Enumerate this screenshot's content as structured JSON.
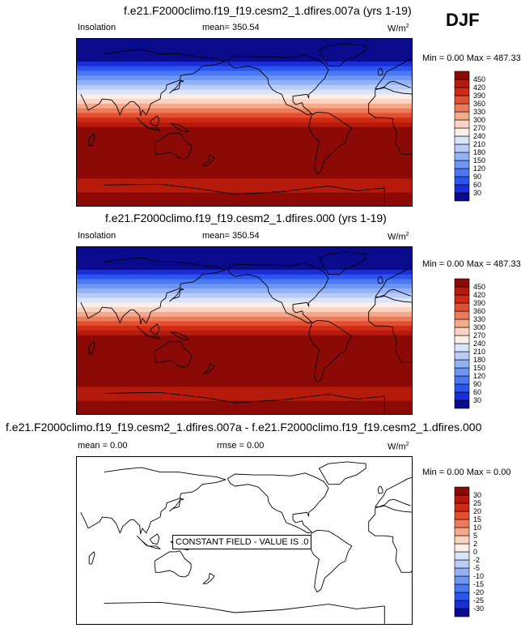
{
  "season": "DJF",
  "panels": [
    {
      "title": "f.e21.F2000climo.f19_f19.cesm2_1.dfires.007a (yrs 1-19)",
      "left_label": "Insolation",
      "mean_label": "mean= 350.54",
      "units_main": "W/m",
      "units_sup": "2",
      "minmax_label": "Min =  0.00 Max = 487.33"
    },
    {
      "title": "f.e21.F2000climo.f19_f19.cesm2_1.dfires.000 (yrs 1-19)",
      "left_label": "Insolation",
      "mean_label": "mean= 350.54",
      "units_main": "W/m",
      "units_sup": "2",
      "minmax_label": "Min =  0.00 Max = 487.33"
    },
    {
      "title": "f.e21.F2000climo.f19_f19.cesm2_1.dfires.007a - f.e21.F2000climo.f19_f19.cesm2_1.dfires.000",
      "mean_label": "mean =   0.00",
      "rmse_label": "rmse =   0.00",
      "units_main": "W/m",
      "units_sup": "2",
      "minmax_label": "Min =  0.00 Max =   0.00",
      "annotation": "CONSTANT FIELD - VALUE IS .0"
    }
  ],
  "chart_data": [
    {
      "type": "heatmap",
      "title": "f.e21.F2000climo.f19_f19.cesm2_1.dfires.007a (yrs 1-19)",
      "variable": "Insolation",
      "units": "W/m2",
      "mean": 350.54,
      "min": 0.0,
      "max": 487.33,
      "colorbar_levels": [
        30,
        60,
        90,
        120,
        150,
        180,
        210,
        240,
        270,
        300,
        330,
        360,
        390,
        420,
        450
      ],
      "colorbar_colors": [
        "#0a0a8c",
        "#1a2dd6",
        "#2a55ee",
        "#4a78f2",
        "#6d95f2",
        "#93b2f5",
        "#b8ccf7",
        "#d9e4fa",
        "#fbeee6",
        "#fad3c2",
        "#f4a98a",
        "#ec7b5b",
        "#e2502f",
        "#d02a14",
        "#b51a0a",
        "#8c0a05"
      ],
      "latitude_bands": [
        {
          "lat": [
            65,
            90
          ],
          "value": 0
        },
        {
          "lat": [
            60,
            65
          ],
          "value": 30
        },
        {
          "lat": [
            55,
            60
          ],
          "value": 75
        },
        {
          "lat": [
            50,
            55
          ],
          "value": 105
        },
        {
          "lat": [
            45,
            50
          ],
          "value": 135
        },
        {
          "lat": [
            40,
            45
          ],
          "value": 165
        },
        {
          "lat": [
            35,
            40
          ],
          "value": 195
        },
        {
          "lat": [
            30,
            35
          ],
          "value": 225
        },
        {
          "lat": [
            25,
            30
          ],
          "value": 255
        },
        {
          "lat": [
            20,
            25
          ],
          "value": 285
        },
        {
          "lat": [
            15,
            20
          ],
          "value": 315
        },
        {
          "lat": [
            10,
            15
          ],
          "value": 345
        },
        {
          "lat": [
            5,
            10
          ],
          "value": 375
        },
        {
          "lat": [
            0,
            5
          ],
          "value": 405
        },
        {
          "lat": [
            -5,
            0
          ],
          "value": 435
        },
        {
          "lat": [
            -60,
            -5
          ],
          "value": 465
        },
        {
          "lat": [
            -75,
            -60
          ],
          "value": 440
        },
        {
          "lat": [
            -90,
            -75
          ],
          "value": 470
        }
      ]
    },
    {
      "type": "heatmap",
      "title": "f.e21.F2000climo.f19_f19.cesm2_1.dfires.000 (yrs 1-19)",
      "variable": "Insolation",
      "units": "W/m2",
      "mean": 350.54,
      "min": 0.0,
      "max": 487.33,
      "colorbar_levels": [
        30,
        60,
        90,
        120,
        150,
        180,
        210,
        240,
        270,
        300,
        330,
        360,
        390,
        420,
        450
      ],
      "colorbar_colors": [
        "#0a0a8c",
        "#1a2dd6",
        "#2a55ee",
        "#4a78f2",
        "#6d95f2",
        "#93b2f5",
        "#b8ccf7",
        "#d9e4fa",
        "#fbeee6",
        "#fad3c2",
        "#f4a98a",
        "#ec7b5b",
        "#e2502f",
        "#d02a14",
        "#b51a0a",
        "#8c0a05"
      ],
      "latitude_bands": [
        {
          "lat": [
            65,
            90
          ],
          "value": 0
        },
        {
          "lat": [
            60,
            65
          ],
          "value": 30
        },
        {
          "lat": [
            55,
            60
          ],
          "value": 75
        },
        {
          "lat": [
            50,
            55
          ],
          "value": 105
        },
        {
          "lat": [
            45,
            50
          ],
          "value": 135
        },
        {
          "lat": [
            40,
            45
          ],
          "value": 165
        },
        {
          "lat": [
            35,
            40
          ],
          "value": 195
        },
        {
          "lat": [
            30,
            35
          ],
          "value": 225
        },
        {
          "lat": [
            25,
            30
          ],
          "value": 255
        },
        {
          "lat": [
            20,
            25
          ],
          "value": 285
        },
        {
          "lat": [
            15,
            20
          ],
          "value": 315
        },
        {
          "lat": [
            10,
            15
          ],
          "value": 345
        },
        {
          "lat": [
            5,
            10
          ],
          "value": 375
        },
        {
          "lat": [
            0,
            5
          ],
          "value": 405
        },
        {
          "lat": [
            -5,
            0
          ],
          "value": 435
        },
        {
          "lat": [
            -60,
            -5
          ],
          "value": 465
        },
        {
          "lat": [
            -75,
            -60
          ],
          "value": 440
        },
        {
          "lat": [
            -90,
            -75
          ],
          "value": 470
        }
      ]
    },
    {
      "type": "heatmap",
      "title": "f.e21.F2000climo.f19_f19.cesm2_1.dfires.007a - f.e21.F2000climo.f19_f19.cesm2_1.dfires.000",
      "units": "W/m2",
      "mean": 0.0,
      "rmse": 0.0,
      "min": 0.0,
      "max": 0.0,
      "colorbar_levels": [
        -30,
        -25,
        -20,
        -15,
        -10,
        -5,
        -2,
        0,
        2,
        5,
        10,
        15,
        20,
        25,
        30
      ],
      "colorbar_colors": [
        "#0a0a8c",
        "#1a2dd6",
        "#2a55ee",
        "#4a78f2",
        "#6d95f2",
        "#93b2f5",
        "#b8ccf7",
        "#d9e4fa",
        "#fbeee6",
        "#fad3c2",
        "#f4a98a",
        "#ec7b5b",
        "#e2502f",
        "#d02a14",
        "#b51a0a",
        "#8c0a05"
      ],
      "latitude_bands": []
    }
  ]
}
